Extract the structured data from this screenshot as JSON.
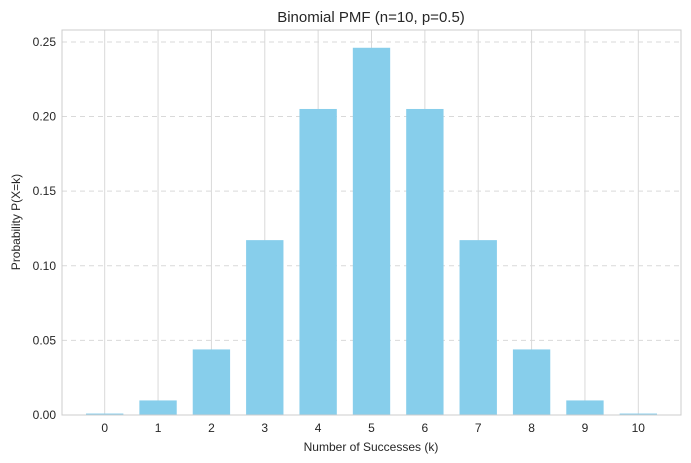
{
  "chart_data": {
    "type": "bar",
    "title": "Binomial PMF (n=10, p=0.5)",
    "xlabel": "Number of Successes (k)",
    "ylabel": "Probability P(X=k)",
    "categories": [
      "0",
      "1",
      "2",
      "3",
      "4",
      "5",
      "6",
      "7",
      "8",
      "9",
      "10"
    ],
    "values": [
      0.000977,
      0.009766,
      0.043945,
      0.117188,
      0.205078,
      0.246094,
      0.205078,
      0.117188,
      0.043945,
      0.009766,
      0.000977
    ],
    "ylim": [
      0,
      0.258
    ],
    "xlim": [
      -0.8,
      10.8
    ],
    "yticks": [
      "0.00",
      "0.05",
      "0.10",
      "0.15",
      "0.20",
      "0.25"
    ],
    "ytick_values": [
      0,
      0.05,
      0.1,
      0.15,
      0.2,
      0.25
    ],
    "grid": {
      "x": true,
      "y": true,
      "y_style": "dashed"
    },
    "colors": {
      "bar": "#87ceeb",
      "grid": "#d9d9d9",
      "axis": "#cccccc",
      "text": "#262626"
    }
  }
}
